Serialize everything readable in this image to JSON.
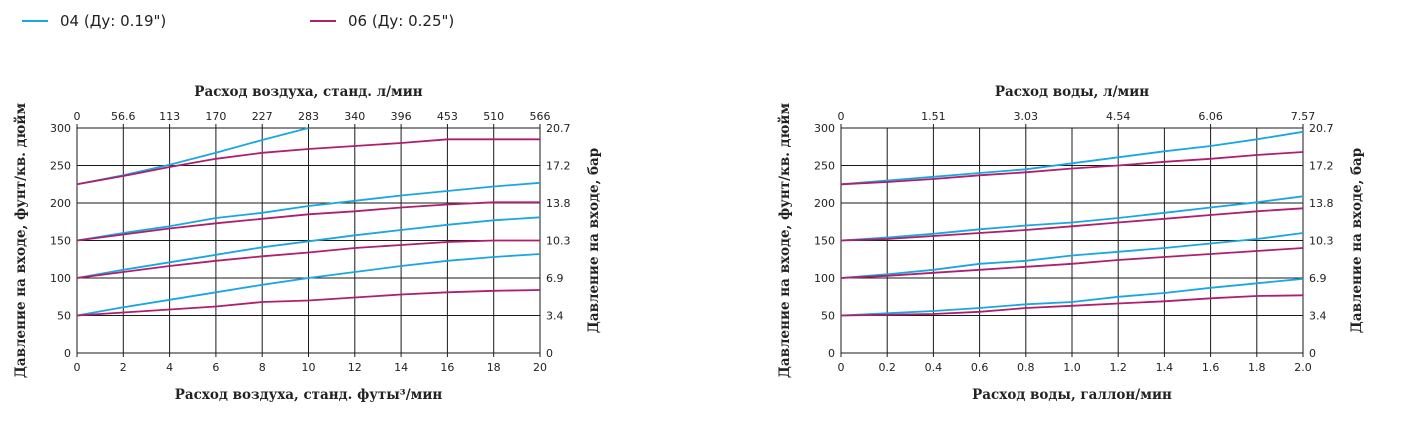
{
  "legend": [
    {
      "label": "04 (Ду: 0.19\")",
      "color": "#1aa7e0"
    },
    {
      "label": "06 (Ду: 0.25\")",
      "color": "#b01e6e"
    }
  ],
  "colors": {
    "series04": "#1aa7e0",
    "series06": "#b01e6e",
    "grid": "#1a1a1a"
  },
  "chart_data": [
    {
      "type": "line",
      "xlabel": "Расход воздуха, станд. футы³/мин",
      "x2label": "Расход воздуха, станд. л/мин",
      "ylabel": "Давление на входе, фунт/кв. дюйм",
      "y2label": "Давление на входе, бар",
      "xlim": [
        0,
        20
      ],
      "ylim": [
        0,
        300
      ],
      "x_ticks": [
        "0",
        "2",
        "4",
        "6",
        "8",
        "10",
        "12",
        "14",
        "16",
        "18",
        "20"
      ],
      "x2_ticks": [
        "0",
        "56.6",
        "113",
        "170",
        "227",
        "283",
        "340",
        "396",
        "453",
        "510",
        "566"
      ],
      "y_ticks": [
        "0",
        "50",
        "100",
        "150",
        "200",
        "250",
        "300"
      ],
      "y2_ticks": [
        "0",
        "3.4",
        "6.9",
        "10.3",
        "13.8",
        "17.2",
        "20.7"
      ],
      "grid": true,
      "series": [
        {
          "name": "04 (Ду: 0.19\")",
          "points": [
            [
              0,
              225
            ],
            [
              2,
              237
            ],
            [
              4,
              251
            ],
            [
              6,
              267
            ],
            [
              8,
              284
            ],
            [
              10,
              300
            ]
          ]
        },
        {
          "name": "04 (Ду: 0.19\")",
          "points": [
            [
              0,
              150
            ],
            [
              2,
              160
            ],
            [
              4,
              169
            ],
            [
              6,
              180
            ],
            [
              8,
              187
            ],
            [
              10,
              196
            ],
            [
              12,
              203
            ],
            [
              14,
              210
            ],
            [
              16,
              216
            ],
            [
              18,
              222
            ],
            [
              20,
              227
            ]
          ]
        },
        {
          "name": "04 (Ду: 0.19\")",
          "points": [
            [
              0,
              100
            ],
            [
              2,
              111
            ],
            [
              4,
              121
            ],
            [
              6,
              131
            ],
            [
              8,
              141
            ],
            [
              10,
              149
            ],
            [
              12,
              157
            ],
            [
              14,
              164
            ],
            [
              16,
              171
            ],
            [
              18,
              177
            ],
            [
              20,
              181
            ]
          ]
        },
        {
          "name": "04 (Ду: 0.19\")",
          "points": [
            [
              0,
              50
            ],
            [
              2,
              61
            ],
            [
              4,
              71
            ],
            [
              6,
              81
            ],
            [
              8,
              91
            ],
            [
              10,
              100
            ],
            [
              12,
              108
            ],
            [
              14,
              116
            ],
            [
              16,
              123
            ],
            [
              18,
              128
            ],
            [
              20,
              132
            ]
          ]
        },
        {
          "name": "06 (Ду: 0.25\")",
          "points": [
            [
              0,
              225
            ],
            [
              2,
              236
            ],
            [
              4,
              248
            ],
            [
              6,
              259
            ],
            [
              8,
              267
            ],
            [
              10,
              272
            ],
            [
              12,
              276
            ],
            [
              14,
              280
            ],
            [
              16,
              285
            ],
            [
              18,
              285
            ],
            [
              20,
              285
            ]
          ]
        },
        {
          "name": "06 (Ду: 0.25\")",
          "points": [
            [
              0,
              150
            ],
            [
              2,
              158
            ],
            [
              4,
              166
            ],
            [
              6,
              173
            ],
            [
              8,
              179
            ],
            [
              10,
              185
            ],
            [
              12,
              189
            ],
            [
              14,
              194
            ],
            [
              16,
              198
            ],
            [
              18,
              201
            ],
            [
              20,
              201
            ]
          ]
        },
        {
          "name": "06 (Ду: 0.25\")",
          "points": [
            [
              0,
              100
            ],
            [
              2,
              108
            ],
            [
              4,
              116
            ],
            [
              6,
              123
            ],
            [
              8,
              129
            ],
            [
              10,
              134
            ],
            [
              12,
              140
            ],
            [
              14,
              144
            ],
            [
              16,
              148
            ],
            [
              18,
              150
            ],
            [
              20,
              150
            ]
          ]
        },
        {
          "name": "06 (Ду: 0.25\")",
          "points": [
            [
              0,
              50
            ],
            [
              2,
              54
            ],
            [
              4,
              58
            ],
            [
              6,
              62
            ],
            [
              8,
              68
            ],
            [
              10,
              70
            ],
            [
              12,
              74
            ],
            [
              14,
              78
            ],
            [
              16,
              81
            ],
            [
              18,
              83
            ],
            [
              20,
              84
            ]
          ]
        }
      ]
    },
    {
      "type": "line",
      "xlabel": "Расход воды, галлон/мин",
      "x2label": "Расход воды, л/мин",
      "ylabel": "Давление на входе, фунт/кв. дюйм",
      "y2label": "Давление на входе, бар",
      "xlim": [
        0,
        2.0
      ],
      "ylim": [
        0,
        300
      ],
      "x_ticks": [
        "0",
        "0.2",
        "0.4",
        "0.6",
        "0.8",
        "1.0",
        "1.2",
        "1.4",
        "1.6",
        "1.8",
        "2.0"
      ],
      "x2_ticks": [
        "0",
        "1.51",
        "3.03",
        "4.54",
        "6.06",
        "7.57"
      ],
      "y_ticks": [
        "0",
        "50",
        "100",
        "150",
        "200",
        "250",
        "300"
      ],
      "y2_ticks": [
        "0",
        "3.4",
        "6.9",
        "10.3",
        "13.8",
        "17.2",
        "20.7"
      ],
      "grid": true,
      "series": [
        {
          "name": "04 (Ду: 0.19\")",
          "points": [
            [
              0,
              225
            ],
            [
              0.2,
              230
            ],
            [
              0.4,
              235
            ],
            [
              0.6,
              240
            ],
            [
              0.8,
              245
            ],
            [
              1.0,
              253
            ],
            [
              1.2,
              261
            ],
            [
              1.4,
              269
            ],
            [
              1.6,
              276
            ],
            [
              1.8,
              285
            ],
            [
              2.0,
              295
            ]
          ]
        },
        {
          "name": "04 (Ду: 0.19\")",
          "points": [
            [
              0,
              150
            ],
            [
              0.2,
              154
            ],
            [
              0.4,
              159
            ],
            [
              0.6,
              165
            ],
            [
              0.8,
              170
            ],
            [
              1.0,
              174
            ],
            [
              1.2,
              180
            ],
            [
              1.4,
              187
            ],
            [
              1.6,
              194
            ],
            [
              1.8,
              201
            ],
            [
              2.0,
              209
            ]
          ]
        },
        {
          "name": "04 (Ду: 0.19\")",
          "points": [
            [
              0,
              100
            ],
            [
              0.2,
              105
            ],
            [
              0.4,
              111
            ],
            [
              0.6,
              119
            ],
            [
              0.8,
              123
            ],
            [
              1.0,
              130
            ],
            [
              1.2,
              135
            ],
            [
              1.4,
              140
            ],
            [
              1.6,
              146
            ],
            [
              1.8,
              152
            ],
            [
              2.0,
              160
            ]
          ]
        },
        {
          "name": "04 (Ду: 0.19\")",
          "points": [
            [
              0,
              50
            ],
            [
              0.2,
              53
            ],
            [
              0.4,
              56
            ],
            [
              0.6,
              60
            ],
            [
              0.8,
              65
            ],
            [
              1.0,
              68
            ],
            [
              1.2,
              75
            ],
            [
              1.4,
              80
            ],
            [
              1.6,
              87
            ],
            [
              1.8,
              93
            ],
            [
              2.0,
              99
            ]
          ]
        },
        {
          "name": "06 (Ду: 0.25\")",
          "points": [
            [
              0,
              225
            ],
            [
              0.2,
              228
            ],
            [
              0.4,
              232
            ],
            [
              0.6,
              237
            ],
            [
              0.8,
              241
            ],
            [
              1.0,
              246
            ],
            [
              1.2,
              250
            ],
            [
              1.4,
              255
            ],
            [
              1.6,
              259
            ],
            [
              1.8,
              264
            ],
            [
              2.0,
              268
            ]
          ]
        },
        {
          "name": "06 (Ду: 0.25\")",
          "points": [
            [
              0,
              150
            ],
            [
              0.2,
              152
            ],
            [
              0.4,
              156
            ],
            [
              0.6,
              160
            ],
            [
              0.8,
              164
            ],
            [
              1.0,
              169
            ],
            [
              1.2,
              174
            ],
            [
              1.4,
              179
            ],
            [
              1.6,
              184
            ],
            [
              1.8,
              189
            ],
            [
              2.0,
              193
            ]
          ]
        },
        {
          "name": "06 (Ду: 0.25\")",
          "points": [
            [
              0,
              100
            ],
            [
              0.2,
              103
            ],
            [
              0.4,
              107
            ],
            [
              0.6,
              111
            ],
            [
              0.8,
              115
            ],
            [
              1.0,
              119
            ],
            [
              1.2,
              124
            ],
            [
              1.4,
              128
            ],
            [
              1.6,
              132
            ],
            [
              1.8,
              136
            ],
            [
              2.0,
              140
            ]
          ]
        },
        {
          "name": "06 (Ду: 0.25\")",
          "points": [
            [
              0,
              50
            ],
            [
              0.2,
              51
            ],
            [
              0.4,
              52
            ],
            [
              0.6,
              55
            ],
            [
              0.8,
              60
            ],
            [
              1.0,
              63
            ],
            [
              1.2,
              66
            ],
            [
              1.4,
              69
            ],
            [
              1.6,
              73
            ],
            [
              1.8,
              76
            ],
            [
              2.0,
              77
            ]
          ]
        }
      ]
    }
  ]
}
